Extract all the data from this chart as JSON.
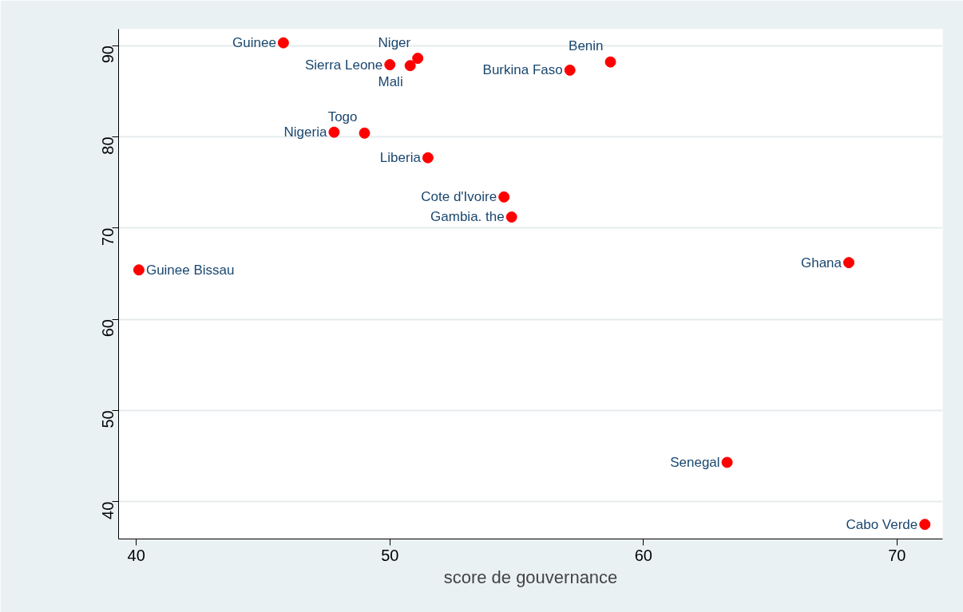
{
  "chart_data": {
    "type": "scatter",
    "xlabel": "score de gouvernance",
    "x": [
      45.8,
      51.1,
      50.0,
      50.8,
      57.1,
      58.7,
      47.8,
      49.0,
      51.5,
      54.5,
      54.8,
      40.1,
      68.1,
      63.3,
      71.1
    ],
    "series": [
      {
        "color": "#ff0000",
        "values": [
          90.3,
          88.6,
          87.9,
          87.8,
          87.3,
          88.2,
          80.5,
          80.4,
          77.7,
          73.4,
          71.2,
          65.4,
          66.2,
          44.3,
          37.5
        ],
        "value_labels": [
          "Guinee",
          "Niger",
          "Sierra Leone",
          "Mali",
          "Burkina Faso",
          "Benin",
          "Nigeria",
          "Togo",
          "Liberia",
          "Cote d'Ivoire",
          "Gambia. the",
          "Guinee Bissau",
          "Ghana",
          "Senegal",
          "Cabo Verde"
        ]
      }
    ],
    "xlim": [
      39.3,
      71.8
    ],
    "ylim": [
      35.9,
      91.8
    ],
    "xticks": [
      40,
      50,
      60,
      70
    ],
    "yticks": [
      40,
      50,
      60,
      70,
      80,
      90
    ],
    "grid": "y",
    "marker": "circle"
  }
}
